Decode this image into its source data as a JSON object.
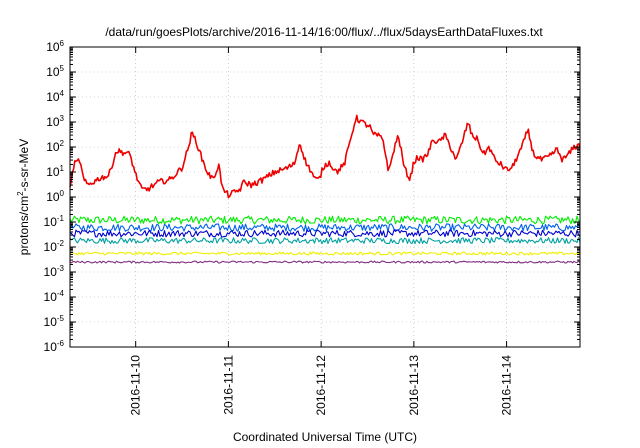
{
  "chart_data": {
    "type": "line",
    "title": "/data/run/goesPlots/archive/2016-11-14/16:00/flux/../flux/5daysEarthDataFluxes.txt",
    "xlabel": "Coordinated Universal Time (UTC)",
    "ylabel": {
      "prefix": "protons/cm",
      "exp": "2",
      "suffix": "-s-sr-MeV"
    },
    "y_scale": "log",
    "ylim": [
      1e-06,
      1000000.0
    ],
    "xlim": [
      "2016-11-09T07:00",
      "2016-11-14T19:00"
    ],
    "grid": true,
    "legend": "none",
    "x_ticks": [
      {
        "x": "2016-11-10T00:00",
        "label": "2016-11-10"
      },
      {
        "x": "2016-11-11T00:00",
        "label": "2016-11-11"
      },
      {
        "x": "2016-11-12T00:00",
        "label": "2016-11-12"
      },
      {
        "x": "2016-11-13T00:00",
        "label": "2016-11-13"
      },
      {
        "x": "2016-11-14T00:00",
        "label": "2016-11-14"
      }
    ],
    "y_ticks": [
      {
        "y": 1e-06,
        "base": "10",
        "exp": "-6"
      },
      {
        "y": 1e-05,
        "base": "10",
        "exp": "-5"
      },
      {
        "y": 0.0001,
        "base": "10",
        "exp": "-4"
      },
      {
        "y": 0.001,
        "base": "10",
        "exp": "-3"
      },
      {
        "y": 0.01,
        "base": "10",
        "exp": "-2"
      },
      {
        "y": 0.1,
        "base": "10",
        "exp": "-1"
      },
      {
        "y": 1,
        "base": "10",
        "exp": "0"
      },
      {
        "y": 10,
        "base": "10",
        "exp": "1"
      },
      {
        "y": 100,
        "base": "10",
        "exp": "2"
      },
      {
        "y": 1000,
        "base": "10",
        "exp": "3"
      },
      {
        "y": 10000,
        "base": "10",
        "exp": "4"
      },
      {
        "y": 100000,
        "base": "10",
        "exp": "5"
      },
      {
        "y": 1000000,
        "base": "10",
        "exp": "6"
      }
    ],
    "series": [
      {
        "color": "#ee0000",
        "noise": 0.12,
        "x": [
          "2016-11-09T07:00",
          "2016-11-09T08:00",
          "2016-11-09T09:30",
          "2016-11-09T10:30",
          "2016-11-09T11:30",
          "2016-11-09T13:00",
          "2016-11-09T15:00",
          "2016-11-09T17:00",
          "2016-11-09T19:00",
          "2016-11-09T21:00",
          "2016-11-09T22:30",
          "2016-11-10T00:00",
          "2016-11-10T01:30",
          "2016-11-10T03:00",
          "2016-11-10T06:00",
          "2016-11-10T09:00",
          "2016-11-10T12:00",
          "2016-11-10T13:30",
          "2016-11-10T14:30",
          "2016-11-10T15:30",
          "2016-11-10T17:00",
          "2016-11-10T18:30",
          "2016-11-10T20:00",
          "2016-11-10T21:30",
          "2016-11-10T22:30",
          "2016-11-11T00:00",
          "2016-11-11T01:30",
          "2016-11-11T03:00",
          "2016-11-11T04:00",
          "2016-11-11T06:00",
          "2016-11-11T09:00",
          "2016-11-11T12:00",
          "2016-11-11T15:00",
          "2016-11-11T17:00",
          "2016-11-11T18:30",
          "2016-11-11T20:00",
          "2016-11-11T21:30",
          "2016-11-11T22:30",
          "2016-11-11T23:30",
          "2016-11-12T00:30",
          "2016-11-12T02:00",
          "2016-11-12T04:00",
          "2016-11-12T06:00",
          "2016-11-12T09:00",
          "2016-11-12T10:30",
          "2016-11-12T11:30",
          "2016-11-12T12:30",
          "2016-11-12T13:30",
          "2016-11-12T14:30",
          "2016-11-12T16:00",
          "2016-11-12T17:30",
          "2016-11-12T19:00",
          "2016-11-12T20:00",
          "2016-11-12T21:30",
          "2016-11-12T23:00",
          "2016-11-13T00:00",
          "2016-11-13T01:00",
          "2016-11-13T02:00",
          "2016-11-13T03:30",
          "2016-11-13T05:00",
          "2016-11-13T06:30",
          "2016-11-13T08:00",
          "2016-11-13T09:30",
          "2016-11-13T11:00",
          "2016-11-13T12:30",
          "2016-11-13T14:00",
          "2016-11-13T15:00",
          "2016-11-13T16:30",
          "2016-11-13T18:00",
          "2016-11-13T19:30",
          "2016-11-13T21:00",
          "2016-11-13T22:30",
          "2016-11-14T00:00",
          "2016-11-14T01:30",
          "2016-11-14T03:00",
          "2016-11-14T04:00",
          "2016-11-14T05:30",
          "2016-11-14T07:00",
          "2016-11-14T09:00",
          "2016-11-14T11:00",
          "2016-11-14T13:00",
          "2016-11-14T14:30",
          "2016-11-14T16:00",
          "2016-11-14T17:30",
          "2016-11-14T19:00"
        ],
        "y": [
          2,
          20,
          30,
          5,
          3,
          4,
          6,
          7,
          70,
          60,
          50,
          8,
          2,
          2,
          4,
          5,
          15,
          80,
          350,
          200,
          40,
          10,
          5,
          20,
          2,
          1.2,
          1.5,
          2,
          4,
          3,
          5,
          10,
          14,
          20,
          150,
          25,
          10,
          5,
          5,
          15,
          25,
          10,
          20,
          1500,
          1000,
          800,
          700,
          300,
          300,
          200,
          10,
          100,
          300,
          15,
          5,
          25,
          40,
          30,
          50,
          200,
          150,
          300,
          100,
          30,
          150,
          1000,
          300,
          200,
          50,
          100,
          30,
          20,
          12,
          15,
          50,
          100,
          500,
          50,
          30,
          40,
          80,
          30,
          50,
          100,
          120
        ]
      },
      {
        "color": "#00ee00",
        "noise": 0.16,
        "x": [
          "2016-11-09T07:00",
          "2016-11-14T19:00"
        ],
        "y": [
          0.12,
          0.12
        ]
      },
      {
        "color": "#0060ee",
        "noise": 0.15,
        "x": [
          "2016-11-09T07:00",
          "2016-11-14T19:00"
        ],
        "y": [
          0.06,
          0.06
        ]
      },
      {
        "color": "#0000cc",
        "noise": 0.14,
        "x": [
          "2016-11-09T07:00",
          "2016-11-14T19:00"
        ],
        "y": [
          0.035,
          0.035
        ]
      },
      {
        "color": "#00a0a0",
        "noise": 0.12,
        "x": [
          "2016-11-09T07:00",
          "2016-11-14T19:00"
        ],
        "y": [
          0.018,
          0.018
        ]
      },
      {
        "color": "#eeee00",
        "noise": 0.06,
        "x": [
          "2016-11-09T07:00",
          "2016-11-14T19:00"
        ],
        "y": [
          0.0055,
          0.0055
        ]
      },
      {
        "color": "#803080",
        "noise": 0.04,
        "x": [
          "2016-11-09T07:00",
          "2016-11-14T19:00"
        ],
        "y": [
          0.0025,
          0.0025
        ]
      }
    ]
  }
}
